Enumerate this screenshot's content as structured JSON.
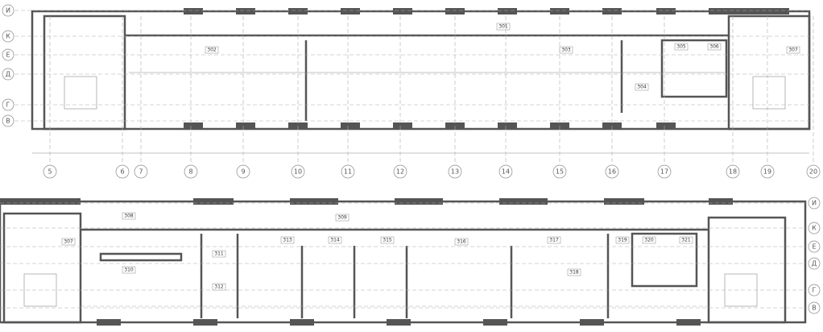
{
  "top_plan": {
    "axes_columns": [
      "5",
      "6",
      "7",
      "8",
      "9",
      "10",
      "11",
      "12",
      "13",
      "14",
      "15",
      "16",
      "17",
      "18",
      "19",
      "20"
    ],
    "axes_rows": [
      "И",
      "К",
      "Е",
      "Д",
      "Г",
      "В"
    ],
    "rooms": [
      "302",
      "301",
      "303",
      "304",
      "305",
      "306",
      "307"
    ]
  },
  "bottom_plan": {
    "axes_rows": [
      "И",
      "К",
      "Е",
      "Д",
      "Г",
      "В"
    ],
    "rooms": [
      "307",
      "308",
      "309",
      "310",
      "311",
      "312",
      "313",
      "314",
      "315",
      "316",
      "317",
      "318",
      "319",
      "320",
      "321"
    ]
  }
}
